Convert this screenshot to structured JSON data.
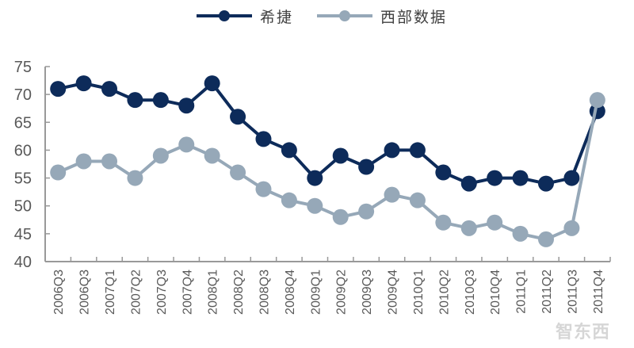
{
  "legend": [
    {
      "label": "希捷",
      "color": "#0d2b5a"
    },
    {
      "label": "西部数据",
      "color": "#96a8b8"
    }
  ],
  "watermark": "智东西",
  "chart_data": {
    "type": "line",
    "title": "",
    "xlabel": "",
    "ylabel": "",
    "ylim": [
      40,
      75
    ],
    "yticks": [
      40,
      45,
      50,
      55,
      60,
      65,
      70,
      75
    ],
    "grid": false,
    "legend_position": "top",
    "categories": [
      "2006Q3",
      "2006Q3",
      "2007Q1",
      "2007Q2",
      "2007Q3",
      "2007Q4",
      "2008Q1",
      "2008Q2",
      "2008Q3",
      "2008Q4",
      "2009Q1",
      "2009Q2",
      "2009Q3",
      "2009Q4",
      "2010Q1",
      "2010Q2",
      "2010Q3",
      "2010Q4",
      "2011Q1",
      "2011Q2",
      "2011Q3",
      "2011Q4"
    ],
    "series": [
      {
        "name": "希捷",
        "color": "#0d2b5a",
        "values": [
          71,
          72,
          71,
          69,
          69,
          68,
          72,
          66,
          62,
          60,
          55,
          59,
          57,
          60,
          60,
          56,
          54,
          55,
          55,
          54,
          55,
          67
        ]
      },
      {
        "name": "西部数据",
        "color": "#96a8b8",
        "values": [
          56,
          58,
          58,
          55,
          59,
          61,
          59,
          56,
          53,
          51,
          50,
          48,
          49,
          52,
          51,
          47,
          46,
          47,
          45,
          44,
          46,
          69
        ]
      }
    ]
  }
}
